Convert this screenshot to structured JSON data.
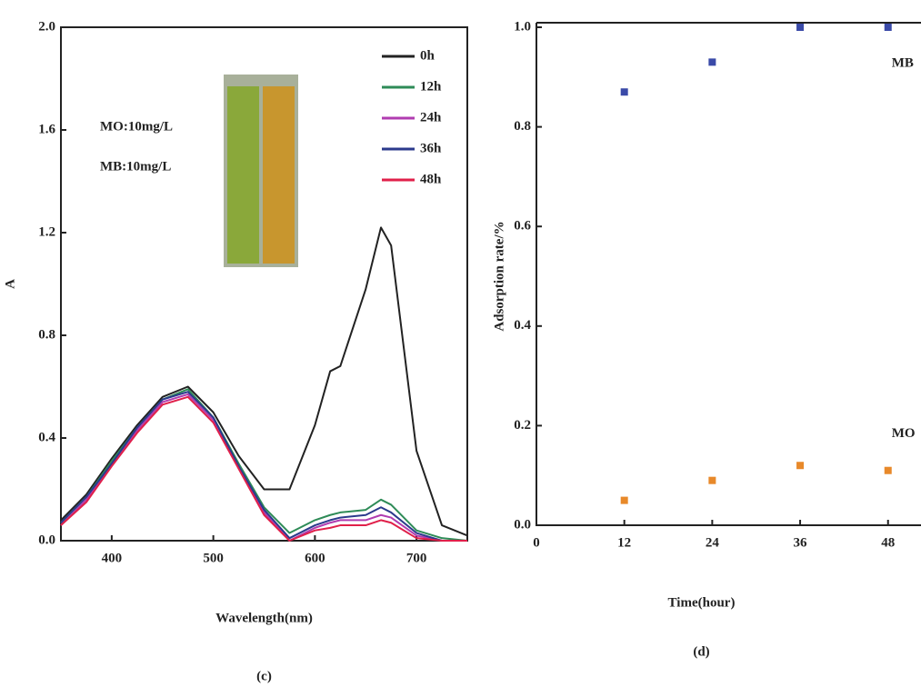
{
  "chart_data": [
    {
      "type": "line",
      "x_label": "Wavelength(nm)",
      "y_label": "A",
      "caption": "(c)",
      "annotations": [
        "MO:10mg/L",
        "MB:10mg/L"
      ],
      "legend": "upper right",
      "x": [
        350,
        375,
        400,
        425,
        450,
        475,
        500,
        525,
        550,
        575,
        600,
        615,
        625,
        650,
        665,
        675,
        700,
        725,
        750
      ],
      "series": [
        {
          "name": "0h",
          "color": "#222222",
          "values": [
            0.08,
            0.18,
            0.32,
            0.45,
            0.56,
            0.6,
            0.5,
            0.33,
            0.2,
            0.2,
            0.45,
            0.66,
            0.68,
            0.98,
            1.22,
            1.15,
            0.35,
            0.06,
            0.02
          ]
        },
        {
          "name": "12h",
          "color": "#2e8b57",
          "values": [
            0.07,
            0.17,
            0.31,
            0.44,
            0.55,
            0.59,
            0.48,
            0.3,
            0.13,
            0.03,
            0.08,
            0.1,
            0.11,
            0.12,
            0.16,
            0.14,
            0.04,
            0.01,
            0
          ]
        },
        {
          "name": "24h",
          "color": "#b03cb0",
          "values": [
            0.06,
            0.16,
            0.3,
            0.43,
            0.54,
            0.57,
            0.47,
            0.29,
            0.11,
            0,
            0.05,
            0.07,
            0.08,
            0.08,
            0.1,
            0.09,
            0.02,
            0,
            0
          ]
        },
        {
          "name": "36h",
          "color": "#2b3a8c",
          "values": [
            0.07,
            0.17,
            0.3,
            0.44,
            0.55,
            0.58,
            0.48,
            0.29,
            0.12,
            0.01,
            0.06,
            0.08,
            0.09,
            0.1,
            0.13,
            0.11,
            0.03,
            0,
            0
          ]
        },
        {
          "name": "48h",
          "color": "#e0204a",
          "values": [
            0.06,
            0.15,
            0.29,
            0.42,
            0.53,
            0.56,
            0.46,
            0.28,
            0.1,
            0,
            0.04,
            0.05,
            0.06,
            0.06,
            0.08,
            0.07,
            0.01,
            0,
            0
          ]
        }
      ],
      "xlim": [
        350,
        750
      ],
      "xticks": [
        400,
        500,
        600,
        700
      ],
      "ylim": [
        0,
        2
      ],
      "yticks": [
        {
          "value": 0,
          "label": "0.0"
        },
        0.4,
        0.8,
        1.2,
        1.6,
        {
          "value": 2,
          "label": "2.0"
        }
      ]
    },
    {
      "type": "scatter",
      "x_label": "Time(hour)",
      "y_label": "Adsorption rate/%",
      "caption": "(d)",
      "x": [
        12,
        24,
        36,
        48
      ],
      "series": [
        {
          "name": "MB",
          "color": "#3a4aa8",
          "values": [
            0.87,
            0.93,
            1.0,
            1.0
          ]
        },
        {
          "name": "MO",
          "color": "#e8892a",
          "values": [
            0.05,
            0.09,
            0.12,
            0.11
          ]
        }
      ],
      "xlim": [
        0,
        52.5
      ],
      "xticks": [
        0,
        12,
        24,
        36,
        48
      ],
      "ylim": [
        0,
        1
      ],
      "yticks": [
        {
          "value": 0,
          "label": "0.0"
        },
        0.2,
        0.4,
        0.6,
        0.8,
        {
          "value": 1,
          "label": "1.0"
        }
      ]
    }
  ]
}
